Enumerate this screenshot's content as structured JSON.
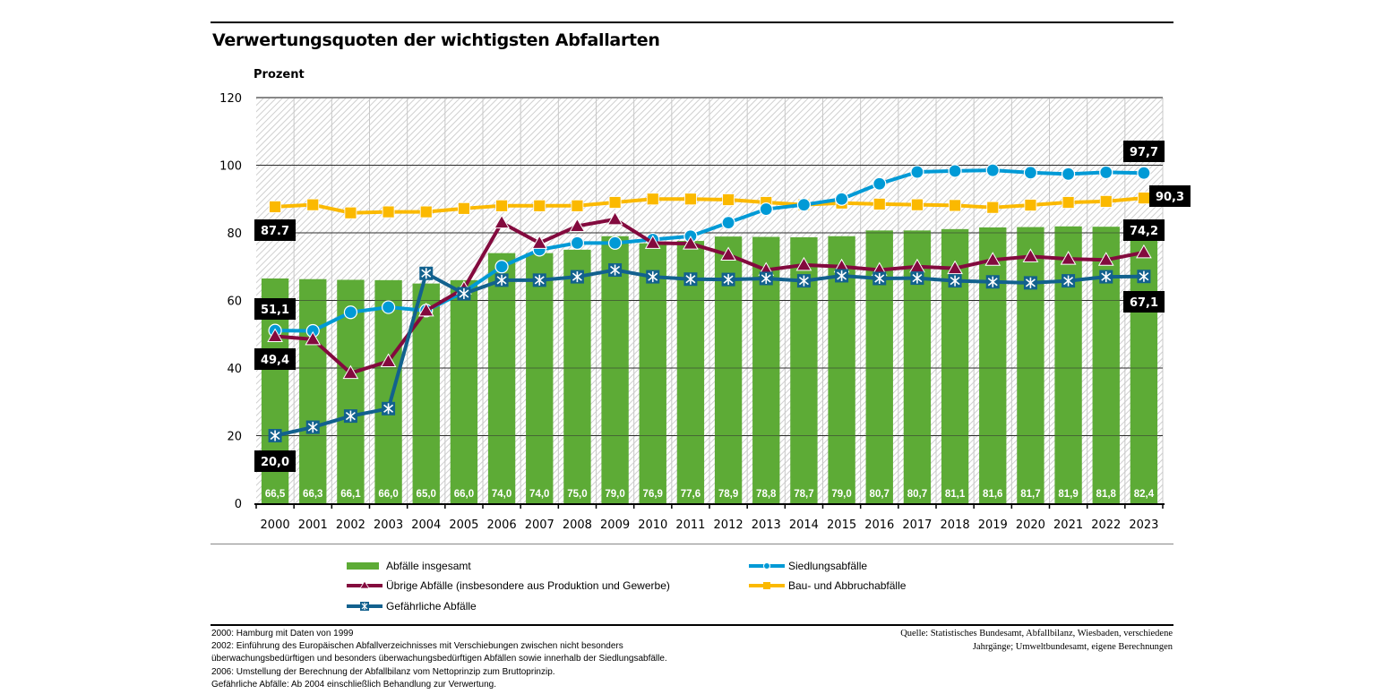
{
  "chart_data": {
    "type": "bar",
    "title": "Verwertungsquoten der wichtigsten Abfallarten",
    "ylabel": "Prozent",
    "xlabel": "",
    "ylim": [
      0,
      120
    ],
    "yticks": [
      0,
      20,
      40,
      60,
      80,
      100,
      120
    ],
    "grid": true,
    "categories": [
      "2000",
      "2001",
      "2002",
      "2003",
      "2004",
      "2005",
      "2006",
      "2007",
      "2008",
      "2009",
      "2010",
      "2011",
      "2012",
      "2013",
      "2014",
      "2015",
      "2016",
      "2017",
      "2018",
      "2019",
      "2020",
      "2021",
      "2022",
      "2023"
    ],
    "bar_series": {
      "name": "Abfälle insgesamt",
      "color": "#5dab36",
      "values": [
        66.5,
        66.3,
        66.1,
        66.0,
        65.0,
        66.0,
        74.0,
        74.0,
        75.0,
        79.0,
        76.9,
        77.6,
        78.9,
        78.8,
        78.7,
        79.0,
        80.7,
        80.7,
        81.1,
        81.6,
        81.7,
        81.9,
        81.8,
        82.4
      ],
      "labels": [
        "66,5",
        "66,3",
        "66,1",
        "66,0",
        "65,0",
        "66,0",
        "74,0",
        "74,0",
        "75,0",
        "79,0",
        "76,9",
        "77,6",
        "78,9",
        "78,8",
        "78,7",
        "79,0",
        "80,7",
        "80,7",
        "81,1",
        "81,6",
        "81,7",
        "81,9",
        "81,8",
        "82,4"
      ]
    },
    "series": [
      {
        "name": "Siedlungsabfälle",
        "type": "line",
        "marker": "circle",
        "color": "#009ad6",
        "values": [
          51.1,
          51.0,
          56.5,
          58.0,
          57.0,
          62.5,
          70.0,
          75.0,
          77.0,
          77.0,
          78.0,
          79.0,
          83.0,
          87.0,
          88.3,
          90.0,
          94.5,
          98.0,
          98.3,
          98.5,
          97.8,
          97.4,
          97.9,
          97.7
        ],
        "end_labels": {
          "first": "51,1",
          "last": "97,7"
        }
      },
      {
        "name": "Bau- und Abbruchabfälle",
        "type": "line",
        "marker": "square",
        "color": "#fbb900",
        "values": [
          87.7,
          88.3,
          85.9,
          86.2,
          86.2,
          87.2,
          88.0,
          88.0,
          88.0,
          89.0,
          90.0,
          90.0,
          89.8,
          89.0,
          88.3,
          88.8,
          88.5,
          88.3,
          88.1,
          87.5,
          88.2,
          89.0,
          89.3,
          90.3
        ],
        "end_labels": {
          "first": "87.7",
          "last": "90,3"
        }
      },
      {
        "name": "Übrige Abfälle (insbesondere aus Produktion und Gewerbe)",
        "type": "line",
        "marker": "triangle",
        "color": "#830a3e",
        "values": [
          49.4,
          48.5,
          38.5,
          42.0,
          57.0,
          63.5,
          83.0,
          77.0,
          82.0,
          84.0,
          77.0,
          76.8,
          73.5,
          69.0,
          70.5,
          70.0,
          69.0,
          70.0,
          69.5,
          72.0,
          73.0,
          72.3,
          72.0,
          74.2
        ],
        "end_labels": {
          "first": "49,4",
          "last": "74,2"
        }
      },
      {
        "name": "Gefährliche Abfälle",
        "type": "line",
        "marker": "asterisk-square",
        "color": "#12618e",
        "values": [
          20.0,
          22.5,
          25.8,
          28.0,
          68.0,
          62.0,
          66.0,
          66.0,
          67.0,
          69.0,
          67.0,
          66.3,
          66.2,
          66.5,
          65.8,
          67.3,
          66.5,
          66.6,
          65.8,
          65.5,
          65.2,
          65.8,
          67.0,
          67.1
        ],
        "end_labels": {
          "first": "20,0",
          "last": "67,1"
        }
      }
    ],
    "legend_position": "bottom"
  },
  "legend": {
    "items": [
      {
        "label": "Abfälle insgesamt",
        "kind": "bar",
        "color": "#5dab36"
      },
      {
        "label": "Siedlungsabfälle",
        "kind": "circle",
        "color": "#009ad6"
      },
      {
        "label": "Übrige Abfälle (insbesondere aus Produktion und Gewerbe)",
        "kind": "triangle",
        "color": "#830a3e"
      },
      {
        "label": "Bau- und Abbruchabfälle",
        "kind": "square",
        "color": "#fbb900"
      },
      {
        "label": "Gefährliche Abfälle",
        "kind": "asterisk",
        "color": "#12618e"
      }
    ]
  },
  "footnotes": [
    "2000: Hamburg mit Daten von 1999",
    "2002: Einführung des Europäischen Abfallverzeichnisses mit Verschiebungen zwischen nicht besonders",
    "überwachungsbedürftigen und besonders überwachungsbedürftigen Abfällen sowie innerhalb der Siedlungsabfälle.",
    "2006: Umstellung der Berechnung der Abfallbilanz vom Nettoprinzip zum Bruttoprinzip.",
    "Gefährliche Abfälle: Ab 2004 einschließlich Behandlung zur Verwertung."
  ],
  "source": [
    "Quelle: Statistisches Bundesamt, Abfallbilanz, Wiesbaden, verschiedene",
    "Jahrgänge; Umweltbundesamt, eigene Berechnungen"
  ]
}
